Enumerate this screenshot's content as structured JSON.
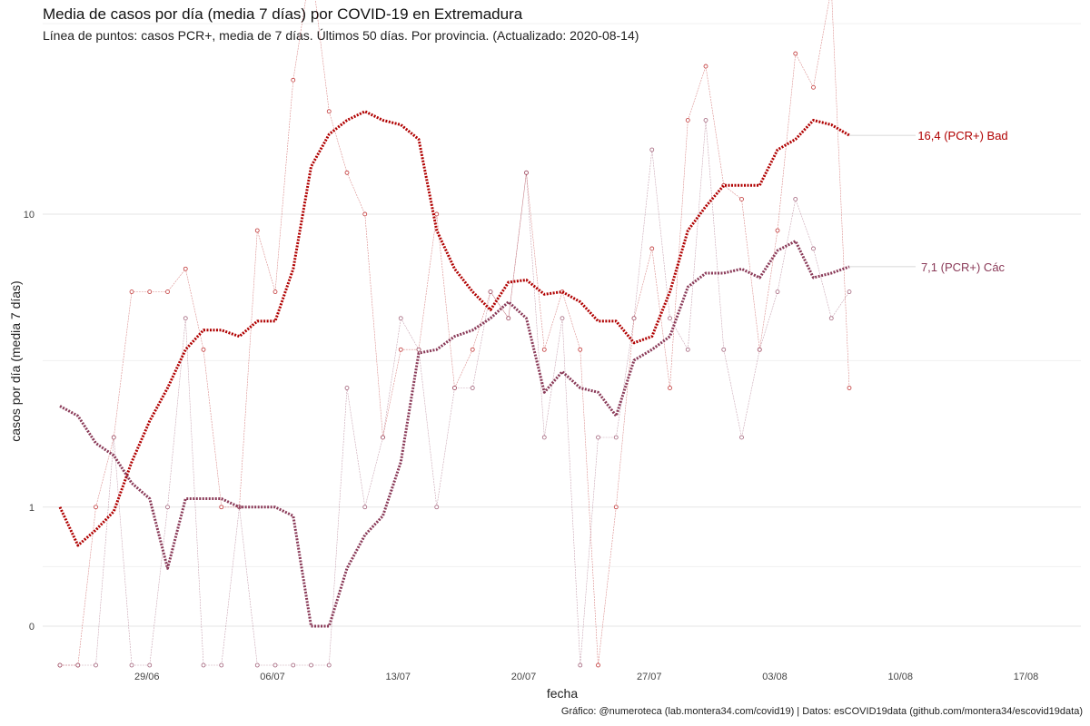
{
  "title": "Media de casos por día (media 7 días) por COVID-19 en Extremadura",
  "subtitle": "Línea de puntos: casos PCR+, media de 7 días. Últimos 50 días. Por provincia. (Actualizado: 2020-08-14)",
  "caption": "Gráfico: @numeroteca (lab.montera34.com/covid19) | Datos: esCOVID19data (github.com/montera34/escovid19data)",
  "chart_data": {
    "type": "line",
    "title": "Media de casos por día (media 7 días) por COVID-19 en Extremadura",
    "xlabel": "fecha",
    "ylabel": "casos por día (media 7 días)",
    "y_scale": "log (log(x+1) style, 0 shown)",
    "x_ticks": [
      "29/06",
      "06/07",
      "13/07",
      "20/07",
      "27/07",
      "03/08",
      "10/08",
      "17/08"
    ],
    "y_ticks": [
      "0",
      "1",
      "10"
    ],
    "x_start": "2020-06-24",
    "x_range": [
      "2020-06-24",
      "2020-08-20"
    ],
    "grid": true,
    "series": [
      {
        "name": "Badajoz",
        "end_label": "16,4 (PCR+) Bad",
        "color": "#b00000",
        "avg": [
          1.0,
          0.6,
          0.75,
          0.95,
          1.6,
          2.3,
          3.0,
          4.0,
          4.6,
          4.6,
          4.4,
          4.9,
          4.9,
          7.0,
          13.5,
          16.5,
          18.0,
          19.0,
          18.0,
          17.5,
          16.0,
          9.0,
          7.0,
          6.0,
          5.3,
          6.4,
          6.5,
          5.9,
          6.0,
          5.6,
          4.9,
          4.9,
          4.2,
          4.4,
          6.0,
          9.0,
          10.5,
          12.0,
          12.0,
          12.0,
          15.0,
          16.0,
          18.0,
          17.5,
          16.4
        ],
        "daily": [
          -1,
          -1,
          1,
          2,
          6,
          6,
          6,
          7,
          4,
          1,
          1,
          9,
          6,
          23,
          46,
          19,
          13,
          10,
          2,
          4,
          4,
          10,
          3,
          4,
          6,
          5,
          13,
          4,
          6,
          4,
          -1,
          1,
          5,
          8,
          3,
          18,
          25,
          12,
          11,
          4,
          9,
          27,
          22,
          40,
          3
        ]
      },
      {
        "name": "Cáceres",
        "end_label": "7,1 (PCR+) Các",
        "color": "#8a3a58",
        "avg": [
          2.6,
          2.4,
          1.9,
          1.7,
          1.3,
          1.1,
          0.4,
          1.1,
          1.1,
          1.1,
          1.0,
          1.0,
          1.0,
          0.9,
          0.0,
          0.0,
          0.4,
          0.7,
          0.9,
          1.6,
          3.9,
          4.0,
          4.4,
          4.6,
          5.0,
          5.6,
          5.0,
          2.9,
          3.4,
          3.0,
          2.9,
          2.4,
          3.7,
          4.0,
          4.4,
          6.2,
          6.8,
          6.8,
          7.0,
          6.6,
          7.9,
          8.4,
          6.6,
          6.8,
          7.1
        ],
        "daily": [
          -1,
          -1,
          -1,
          2,
          -1,
          -1,
          1,
          5,
          -1,
          -1,
          1,
          -1,
          -1,
          -1,
          -1,
          -1,
          3,
          1,
          2,
          5,
          4,
          1,
          3,
          3,
          6,
          5,
          13,
          2,
          5,
          -1,
          2,
          2,
          5,
          15,
          5,
          4,
          18,
          4,
          2,
          4,
          6,
          11,
          8,
          5,
          6
        ]
      }
    ]
  }
}
